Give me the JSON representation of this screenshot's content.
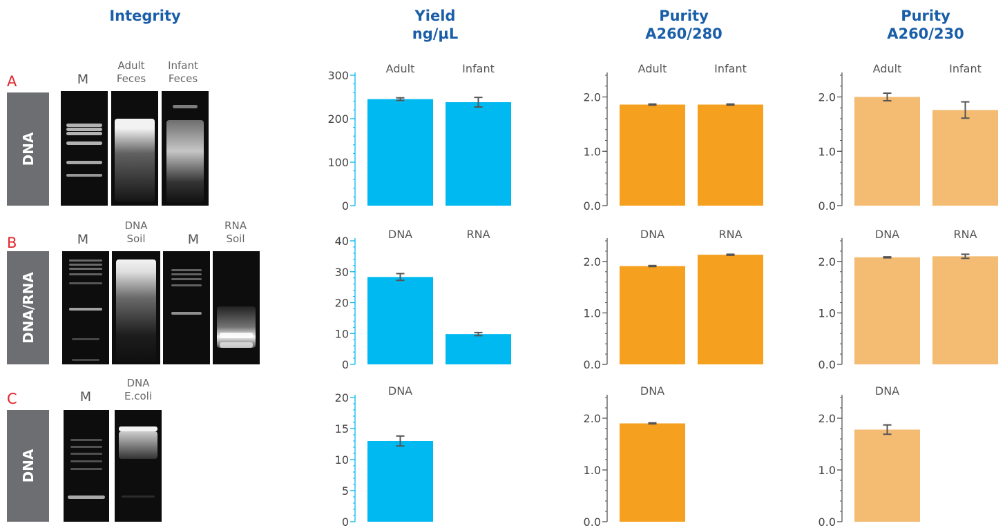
{
  "headers": {
    "integrity": "Integrity",
    "yield": "Yield\nng/µL",
    "p280": "Purity\nA260/280",
    "p230": "Purity\nA260/230"
  },
  "rows": [
    {
      "letter": "A",
      "side": "DNA",
      "lanes": [
        "M",
        "Adult\nFeces",
        "Infant\nFeces"
      ]
    },
    {
      "letter": "B",
      "side": "DNA/RNA",
      "lanes": [
        "M",
        "DNA\nSoil",
        "M",
        "RNA\nSoil"
      ]
    },
    {
      "letter": "C",
      "side": "DNA",
      "lanes": [
        "M",
        "DNA\nE.coli"
      ]
    }
  ],
  "colors": {
    "yield": "#00b9f0",
    "a260_280": "#f5a01e",
    "a260_230": "#f4bb72",
    "header": "#1a5ea8",
    "row_letter": "#e3242b",
    "side_box": "#6d6e71",
    "errorbar": "#555555"
  },
  "chart_data": [
    {
      "id": "yA",
      "type": "bar",
      "row": "A",
      "metric": "Yield ng/µL",
      "categories": [
        "Adult",
        "Infant"
      ],
      "values": [
        245,
        238
      ],
      "errors": [
        3,
        11
      ],
      "ylim": [
        0,
        300
      ],
      "yticks": [
        "0",
        "100",
        "200",
        "300"
      ],
      "grid": false,
      "legend": "none"
    },
    {
      "id": "pA1",
      "type": "bar",
      "row": "A",
      "metric": "Purity A260/280",
      "categories": [
        "Adult",
        "Infant"
      ],
      "values": [
        1.86,
        1.86
      ],
      "errors": [
        0.01,
        0.01
      ],
      "ylim": [
        0,
        2.4
      ],
      "yticks": [
        "0.0",
        "1.0",
        "2.0"
      ],
      "grid": false,
      "legend": "none"
    },
    {
      "id": "pA2",
      "type": "bar",
      "row": "A",
      "metric": "Purity A260/230",
      "categories": [
        "Adult",
        "Infant"
      ],
      "values": [
        2.0,
        1.76
      ],
      "errors": [
        0.07,
        0.15
      ],
      "ylim": [
        0,
        2.4
      ],
      "yticks": [
        "0.0",
        "1.0",
        "2.0"
      ],
      "grid": false,
      "legend": "none"
    },
    {
      "id": "yB",
      "type": "bar",
      "row": "B",
      "metric": "Yield ng/µL",
      "categories": [
        "DNA",
        "RNA"
      ],
      "values": [
        28.3,
        9.8
      ],
      "errors": [
        1.1,
        0.5
      ],
      "ylim": [
        0,
        40
      ],
      "yticks": [
        "0",
        "10",
        "20",
        "30",
        "40"
      ],
      "grid": false,
      "legend": "none"
    },
    {
      "id": "pB1",
      "type": "bar",
      "row": "B",
      "metric": "Purity A260/280",
      "categories": [
        "DNA",
        "RNA"
      ],
      "values": [
        1.91,
        2.13
      ],
      "errors": [
        0.01,
        0.01
      ],
      "ylim": [
        0,
        2.4
      ],
      "yticks": [
        "0.0",
        "1.0",
        "2.0"
      ],
      "grid": false,
      "legend": "none"
    },
    {
      "id": "pB2",
      "type": "bar",
      "row": "B",
      "metric": "Purity A260/230",
      "categories": [
        "DNA",
        "RNA"
      ],
      "values": [
        2.08,
        2.1
      ],
      "errors": [
        0.01,
        0.04
      ],
      "ylim": [
        0,
        2.4
      ],
      "yticks": [
        "0.0",
        "1.0",
        "2.0"
      ],
      "grid": false,
      "legend": "none"
    },
    {
      "id": "yC",
      "type": "bar",
      "row": "C",
      "metric": "Yield ng/µL",
      "categories": [
        "DNA"
      ],
      "values": [
        13.0
      ],
      "errors": [
        0.8
      ],
      "ylim": [
        0,
        20
      ],
      "yticks": [
        "0",
        "5",
        "10",
        "15",
        "20"
      ],
      "grid": false,
      "legend": "none"
    },
    {
      "id": "pC1",
      "type": "bar",
      "row": "C",
      "metric": "Purity A260/280",
      "categories": [
        "DNA"
      ],
      "values": [
        1.9
      ],
      "errors": [
        0.01
      ],
      "ylim": [
        0,
        2.4
      ],
      "yticks": [
        "0.0",
        "1.0",
        "2.0"
      ],
      "grid": false,
      "legend": "none"
    },
    {
      "id": "pC2",
      "type": "bar",
      "row": "C",
      "metric": "Purity A260/230",
      "categories": [
        "DNA"
      ],
      "values": [
        1.78
      ],
      "errors": [
        0.09
      ],
      "ylim": [
        0,
        2.4
      ],
      "yticks": [
        "0.0",
        "1.0",
        "2.0"
      ],
      "grid": false,
      "legend": "none"
    }
  ]
}
